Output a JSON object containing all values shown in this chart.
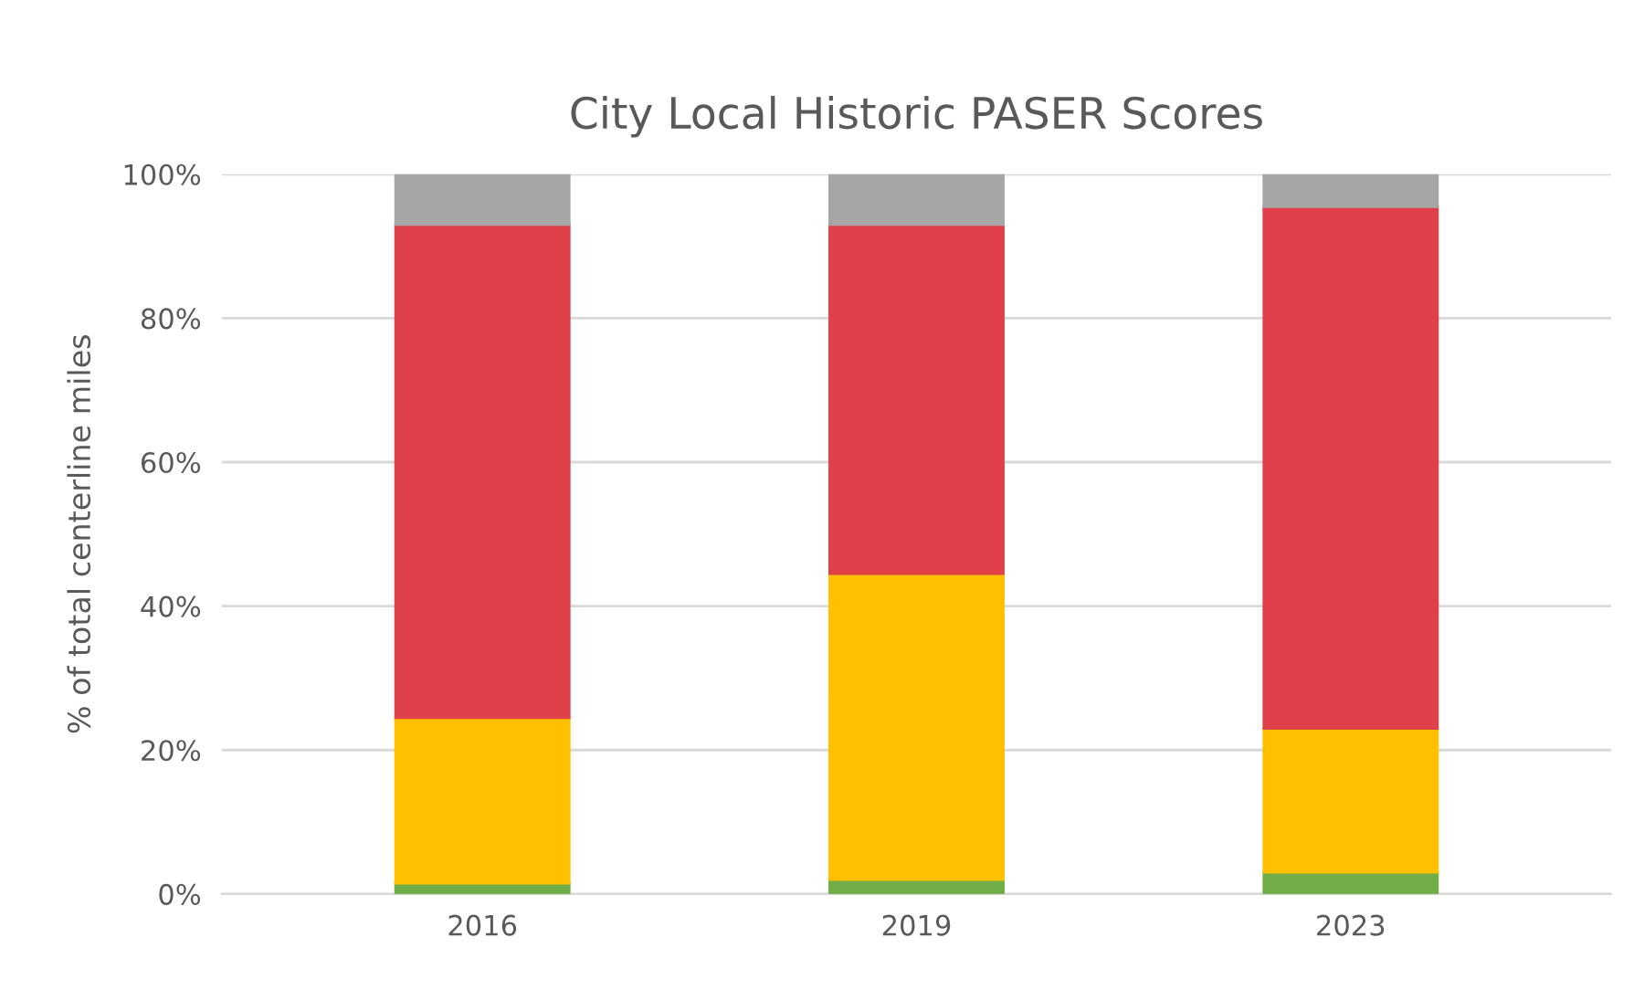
{
  "chart_data": {
    "type": "bar",
    "stacked": true,
    "title": "City Local Historic PASER Scores",
    "ylabel": "% of total centerline miles",
    "categories": [
      "2016",
      "2019",
      "2023"
    ],
    "series": [
      {
        "color": "#70ad47",
        "values": [
          1.5,
          2,
          3
        ]
      },
      {
        "color": "#ffc000",
        "values": [
          23,
          42.5,
          20
        ]
      },
      {
        "color": "#e0404a",
        "values": [
          68.5,
          48.5,
          72.5
        ]
      },
      {
        "color": "#a6a6a6",
        "values": [
          7,
          7,
          4.5
        ]
      }
    ],
    "ylim": [
      0,
      100
    ],
    "yticks": [
      {
        "value": 0,
        "label": "0%"
      },
      {
        "value": 20,
        "label": "20%"
      },
      {
        "value": 40,
        "label": "40%"
      },
      {
        "value": 60,
        "label": "60%"
      },
      {
        "value": 80,
        "label": "80%"
      },
      {
        "value": 100,
        "label": "100%"
      }
    ],
    "grid": "y",
    "legend": false
  }
}
